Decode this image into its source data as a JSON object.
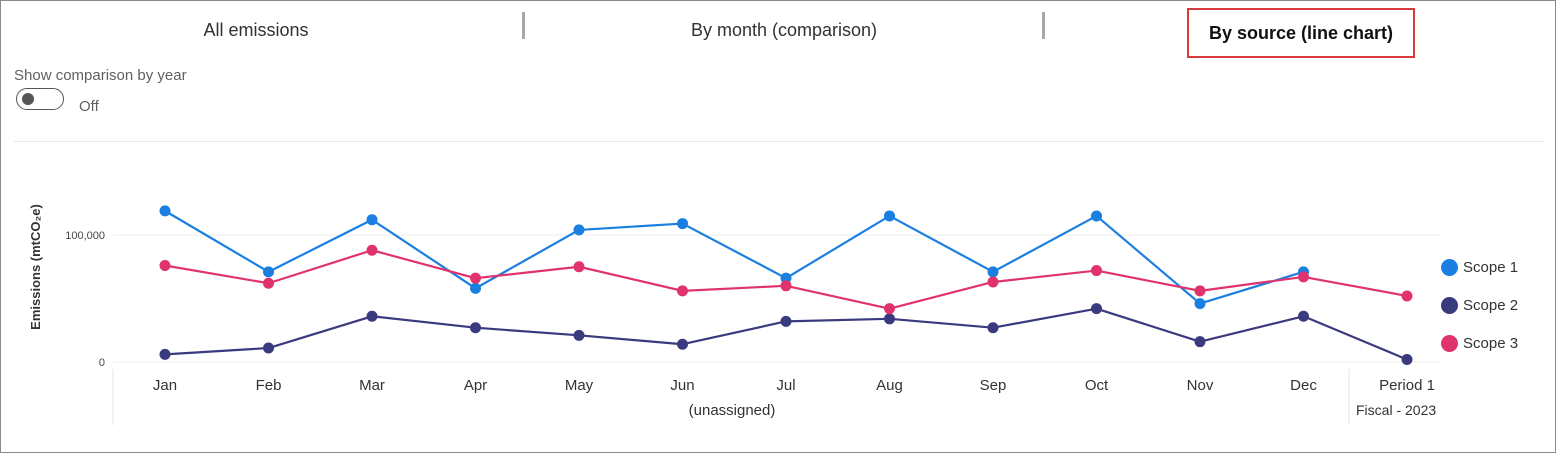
{
  "tabs": [
    {
      "label": "All emissions",
      "active": false
    },
    {
      "label": "By month (comparison)",
      "active": false
    },
    {
      "label": "By source (line chart)",
      "active": true
    }
  ],
  "toggle": {
    "label": "Show comparison by year",
    "state": "Off"
  },
  "chart_data": {
    "type": "line",
    "ylabel": "Emissions (mtCO₂e)",
    "yticks": [
      {
        "value": 0,
        "label": "0"
      },
      {
        "value": 100000,
        "label": "100,000"
      }
    ],
    "ylim": [
      0,
      160000
    ],
    "categories": [
      "Jan",
      "Feb",
      "Mar",
      "Apr",
      "May",
      "Jun",
      "Jul",
      "Aug",
      "Sep",
      "Oct",
      "Nov",
      "Dec",
      "Period 1"
    ],
    "category_groups": [
      "(unassigned)",
      "Fiscal - 2023"
    ],
    "grid": true,
    "legend_position": "right",
    "series": [
      {
        "name": "Scope 1",
        "color": "#1a7fe0",
        "values": [
          119000,
          71000,
          112000,
          58000,
          104000,
          109000,
          66000,
          115000,
          71000,
          115000,
          46000,
          71000,
          null
        ]
      },
      {
        "name": "Scope 2",
        "color": "#3a3a7e",
        "values": [
          6000,
          11000,
          36000,
          27000,
          21000,
          14000,
          32000,
          34000,
          27000,
          42000,
          16000,
          36000,
          2000
        ]
      },
      {
        "name": "Scope 3",
        "color": "#e0336e",
        "values": [
          76000,
          62000,
          88000,
          66000,
          75000,
          56000,
          60000,
          42000,
          63000,
          72000,
          56000,
          67000,
          52000
        ]
      }
    ]
  }
}
